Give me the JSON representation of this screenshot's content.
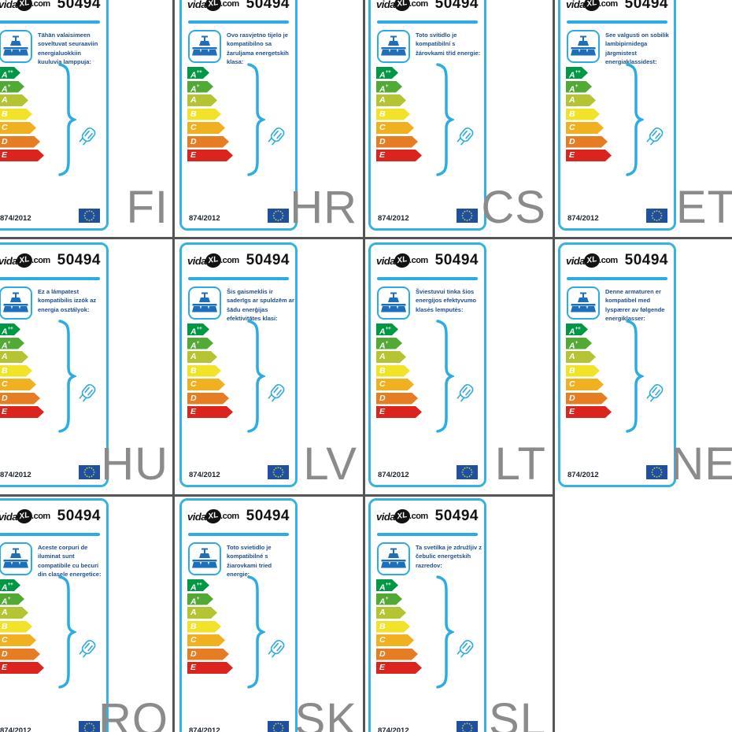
{
  "sheet": {
    "product_number": "50494",
    "brand": {
      "prefix": "vida",
      "badge": "XL",
      "suffix": ".com"
    },
    "regulation": "874/2012"
  },
  "icons": {
    "luminaire": "ceiling-lamp-icon",
    "bulb": "g9-bulb-icon",
    "bracket": "curly-brace-icon",
    "flag": "eu-flag-icon"
  },
  "colors": {
    "card_border": "#36b1e4",
    "accent_blue": "#2bace2",
    "description_text": "#1d4f8f",
    "language_code": "#8b8b8b",
    "grid_line": "#555555",
    "eu_flag_blue": "#1e4fa0",
    "eu_flag_stars": "#c9d63b"
  },
  "energy_classes": [
    {
      "grade": "A",
      "sup": "++",
      "color": "#009845"
    },
    {
      "grade": "A",
      "sup": "+",
      "color": "#52a934"
    },
    {
      "grade": "A",
      "sup": "",
      "color": "#b5c433"
    },
    {
      "grade": "B",
      "sup": "",
      "color": "#f1e329"
    },
    {
      "grade": "C",
      "sup": "",
      "color": "#f0b020"
    },
    {
      "grade": "D",
      "sup": "",
      "color": "#e67d22"
    },
    {
      "grade": "E",
      "sup": "",
      "color": "#dc241f"
    }
  ],
  "labels": [
    {
      "code": "FI",
      "row": 0,
      "col": 0,
      "description": "Tähän valaisimeen soveltuvat seuraaviin energialuokkiin kuuluvia lamppuja:"
    },
    {
      "code": "HR",
      "row": 0,
      "col": 1,
      "description": "Ovo rasvjetno tijelo je kompatibilno sa žaruljama energetskih klasa:"
    },
    {
      "code": "CS",
      "row": 0,
      "col": 2,
      "description": "Toto svítidlo je kompatibilní s žárovkami tříd energie:"
    },
    {
      "code": "ET",
      "row": 0,
      "col": 3,
      "description": "See valgusti on sobilik lambipirnidega järgmistest energiaklassidest:"
    },
    {
      "code": "HU",
      "row": 1,
      "col": 0,
      "description": "Ez a lámpatest kompatibilis izzók az energia osztályok:"
    },
    {
      "code": "LV",
      "row": 1,
      "col": 1,
      "description": "Šis gaismeklis ir saderīgs ar spuldzēm ar šādu enerģijas efektivitātes klasi:"
    },
    {
      "code": "LT",
      "row": 1,
      "col": 2,
      "description": "Šviestuvui tinka šios energijos efektyvumo klasės lemputės:"
    },
    {
      "code": "NE",
      "row": 1,
      "col": 3,
      "description": "Denne armaturen er kompatibel med lyspærer av følgende energiklasser:"
    },
    {
      "code": "RO",
      "row": 2,
      "col": 0,
      "description": "Aceste corpuri de iluminat sunt compatibile cu becuri din clasele energetice:"
    },
    {
      "code": "SK",
      "row": 2,
      "col": 1,
      "description": "Toto svietidlo je kompatibilné s žiarovkami tried energie:"
    },
    {
      "code": "SL",
      "row": 2,
      "col": 2,
      "description": "Ta svetilka je združljiv z čebulic energetskih razredov:"
    }
  ]
}
